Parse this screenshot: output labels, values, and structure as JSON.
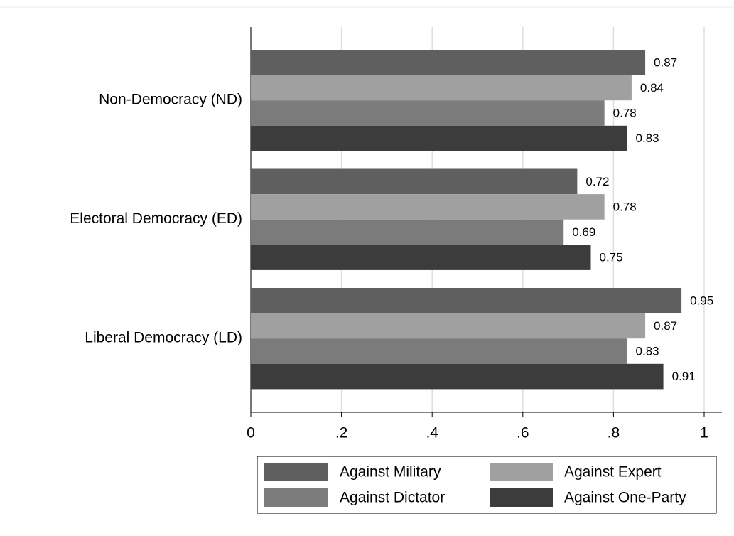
{
  "chart_data": {
    "type": "hbar",
    "categories": [
      "Non-Democracy (ND)",
      "Electoral Democracy (ED)",
      "Liberal Democracy (LD)"
    ],
    "series": [
      {
        "name": "Against Military",
        "color": "#5f5f5f",
        "values": [
          0.87,
          0.72,
          0.95
        ]
      },
      {
        "name": "Against Expert",
        "color": "#a0a0a0",
        "values": [
          0.84,
          0.78,
          0.87
        ]
      },
      {
        "name": "Against Dictator",
        "color": "#7b7b7b",
        "values": [
          0.78,
          0.69,
          0.83
        ]
      },
      {
        "name": "Against One-Party",
        "color": "#3c3c3c",
        "values": [
          0.83,
          0.75,
          0.91
        ]
      }
    ],
    "xlim": [
      0,
      1
    ],
    "xticks": [
      0,
      {
        "value": 0.2,
        "label": ".2"
      },
      {
        "value": 0.4,
        "label": ".4"
      },
      {
        "value": 0.6,
        "label": ".6"
      },
      {
        "value": 0.8,
        "label": ".8"
      },
      1
    ],
    "grid": true,
    "legend": "bottom"
  }
}
